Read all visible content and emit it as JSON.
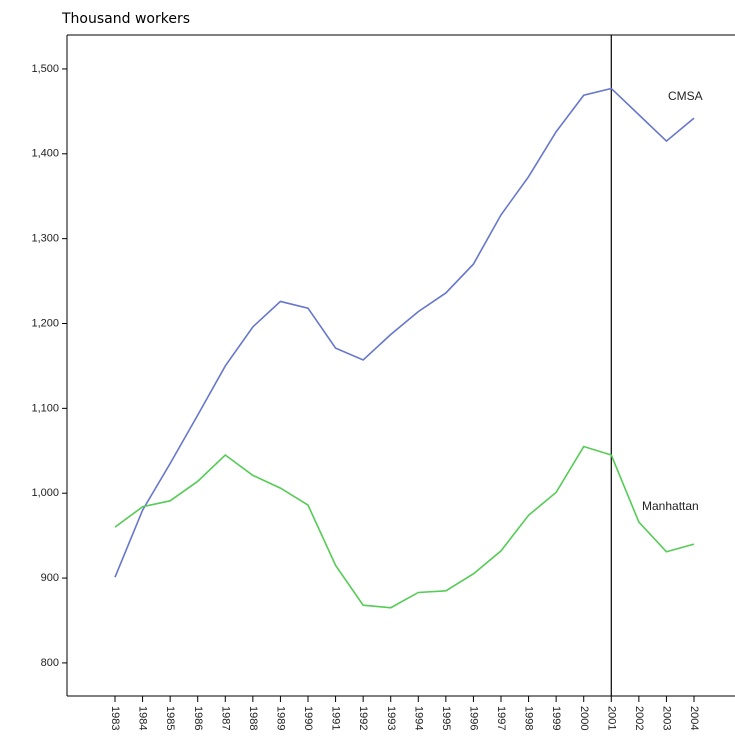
{
  "chart_data": {
    "type": "line",
    "title": "Thousand workers",
    "categories": [
      "1983",
      "1984",
      "1985",
      "1986",
      "1987",
      "1988",
      "1989",
      "1990",
      "1991",
      "1992",
      "1993",
      "1994",
      "1995",
      "1996",
      "1997",
      "1998",
      "1999",
      "2000",
      "2001",
      "2002",
      "2003",
      "2004"
    ],
    "series": [
      {
        "name": "CMSA",
        "color": "#6677cc",
        "values": [
          901,
          980,
          1035,
          1092,
          1150,
          1196,
          1226,
          1218,
          1171,
          1157,
          1187,
          1214,
          1236,
          1270,
          1328,
          1373,
          1426,
          1469,
          1477,
          1446,
          1415,
          1442
        ]
      },
      {
        "name": "Manhattan",
        "color": "#55cc55",
        "values": [
          960,
          984,
          991,
          1014,
          1045,
          1021,
          1006,
          986,
          915,
          868,
          865,
          883,
          885,
          905,
          932,
          974,
          1001,
          1055,
          1045,
          966,
          931,
          940
        ]
      }
    ],
    "ylim": [
      761,
      1540
    ],
    "yticks": [
      800,
      900,
      {
        "value": 1000,
        "label": "1,000"
      },
      {
        "value": 1100,
        "label": "1,100"
      },
      {
        "value": 1200,
        "label": "1,200"
      },
      {
        "value": 1300,
        "label": "1,300"
      },
      {
        "value": 1400,
        "label": "1,400"
      },
      {
        "value": 1500,
        "label": "1,500"
      }
    ],
    "vertical_line_at": "2001",
    "grid": false
  }
}
